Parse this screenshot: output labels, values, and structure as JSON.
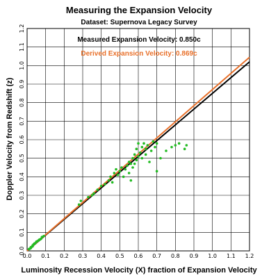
{
  "chart_data": {
    "type": "scatter",
    "title": "Measuring the Expansion Velocity",
    "subtitle": "Dataset:  Supernova Legacy Survey",
    "annotations": [
      {
        "text": "Measured Expansion Velocity:  0.850c",
        "color": "#000000"
      },
      {
        "text": "Derived Expansion Velocity:  0.869c",
        "color": "#e8702a"
      }
    ],
    "xlabel": "Luminosity Recession Velocity (X) fraction of Expansion Velocity",
    "ylabel": "Doppler Velocity from Redshift (z)",
    "xlim": [
      0,
      1.2
    ],
    "ylim": [
      0,
      1.2
    ],
    "x_ticks": [
      "0.0",
      "0.1",
      "0.2",
      "0.3",
      "0.4",
      "0.5",
      "0.6",
      "0.7",
      "0.8",
      "0.9",
      "1.0",
      "1.1",
      "1.2"
    ],
    "y_ticks": [
      "0.0",
      "0.1",
      "0.2",
      "0.3",
      "0.4",
      "0.5",
      "0.6",
      "0.7",
      "0.8",
      "0.9",
      "1.0",
      "1.1",
      "1.2"
    ],
    "grid": true,
    "lines": [
      {
        "name": "measured",
        "color": "#000000",
        "x": [
          0,
          1.2
        ],
        "y": [
          0,
          1.02
        ]
      },
      {
        "name": "derived",
        "color": "#e8702a",
        "x": [
          0,
          1.2
        ],
        "y": [
          0,
          1.045
        ]
      }
    ],
    "series": [
      {
        "color": "#22bb22",
        "points": [
          [
            0.01,
            0.01
          ],
          [
            0.015,
            0.012
          ],
          [
            0.02,
            0.015
          ],
          [
            0.02,
            0.02
          ],
          [
            0.025,
            0.022
          ],
          [
            0.03,
            0.025
          ],
          [
            0.03,
            0.03
          ],
          [
            0.035,
            0.035
          ],
          [
            0.04,
            0.04
          ],
          [
            0.045,
            0.042
          ],
          [
            0.05,
            0.05
          ],
          [
            0.055,
            0.052
          ],
          [
            0.06,
            0.055
          ],
          [
            0.065,
            0.06
          ],
          [
            0.07,
            0.062
          ],
          [
            0.075,
            0.065
          ],
          [
            0.08,
            0.075
          ],
          [
            0.09,
            0.08
          ],
          [
            0.28,
            0.25
          ],
          [
            0.29,
            0.27
          ],
          [
            0.33,
            0.29
          ],
          [
            0.35,
            0.3
          ],
          [
            0.36,
            0.31
          ],
          [
            0.38,
            0.33
          ],
          [
            0.4,
            0.35
          ],
          [
            0.42,
            0.36
          ],
          [
            0.44,
            0.38
          ],
          [
            0.45,
            0.4
          ],
          [
            0.46,
            0.37
          ],
          [
            0.47,
            0.42
          ],
          [
            0.48,
            0.44
          ],
          [
            0.49,
            0.41
          ],
          [
            0.5,
            0.43
          ],
          [
            0.51,
            0.45
          ],
          [
            0.52,
            0.4
          ],
          [
            0.53,
            0.44
          ],
          [
            0.54,
            0.46
          ],
          [
            0.55,
            0.42
          ],
          [
            0.55,
            0.48
          ],
          [
            0.56,
            0.38
          ],
          [
            0.56,
            0.47
          ],
          [
            0.57,
            0.45
          ],
          [
            0.57,
            0.5
          ],
          [
            0.58,
            0.52
          ],
          [
            0.58,
            0.47
          ],
          [
            0.59,
            0.49
          ],
          [
            0.59,
            0.55
          ],
          [
            0.6,
            0.51
          ],
          [
            0.6,
            0.58
          ],
          [
            0.61,
            0.53
          ],
          [
            0.62,
            0.5
          ],
          [
            0.62,
            0.56
          ],
          [
            0.63,
            0.58
          ],
          [
            0.64,
            0.52
          ],
          [
            0.64,
            0.55
          ],
          [
            0.65,
            0.57
          ],
          [
            0.66,
            0.48
          ],
          [
            0.67,
            0.54
          ],
          [
            0.68,
            0.59
          ],
          [
            0.69,
            0.56
          ],
          [
            0.7,
            0.58
          ],
          [
            0.7,
            0.43
          ],
          [
            0.72,
            0.5
          ],
          [
            0.75,
            0.54
          ],
          [
            0.78,
            0.56
          ],
          [
            0.8,
            0.57
          ],
          [
            0.82,
            0.58
          ],
          [
            0.85,
            0.55
          ],
          [
            0.86,
            0.57
          ]
        ]
      }
    ]
  }
}
